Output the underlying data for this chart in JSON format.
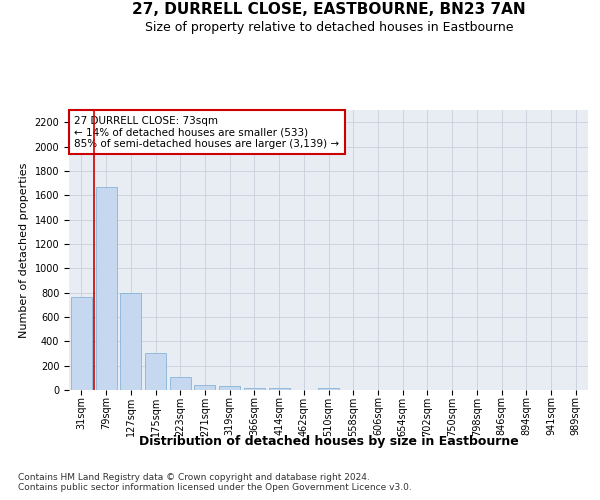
{
  "title1": "27, DURRELL CLOSE, EASTBOURNE, BN23 7AN",
  "title2": "Size of property relative to detached houses in Eastbourne",
  "xlabel": "Distribution of detached houses by size in Eastbourne",
  "ylabel": "Number of detached properties",
  "categories": [
    "31sqm",
    "79sqm",
    "127sqm",
    "175sqm",
    "223sqm",
    "271sqm",
    "319sqm",
    "366sqm",
    "414sqm",
    "462sqm",
    "510sqm",
    "558sqm",
    "606sqm",
    "654sqm",
    "702sqm",
    "750sqm",
    "798sqm",
    "846sqm",
    "894sqm",
    "941sqm",
    "989sqm"
  ],
  "values": [
    760,
    1670,
    800,
    300,
    110,
    40,
    30,
    20,
    20,
    0,
    20,
    0,
    0,
    0,
    0,
    0,
    0,
    0,
    0,
    0,
    0
  ],
  "bar_color": "#c5d8f0",
  "bar_edge_color": "#7aaad0",
  "grid_color": "#c8d0dc",
  "background_color": "#e8edf4",
  "annotation_text": "27 DURRELL CLOSE: 73sqm\n← 14% of detached houses are smaller (533)\n85% of semi-detached houses are larger (3,139) →",
  "annotation_box_color": "#ffffff",
  "annotation_box_edge": "#cc0000",
  "vline_color": "#cc0000",
  "ylim": [
    0,
    2300
  ],
  "yticks": [
    0,
    200,
    400,
    600,
    800,
    1000,
    1200,
    1400,
    1600,
    1800,
    2000,
    2200
  ],
  "footer": "Contains HM Land Registry data © Crown copyright and database right 2024.\nContains public sector information licensed under the Open Government Licence v3.0.",
  "title1_fontsize": 11,
  "title2_fontsize": 9,
  "xlabel_fontsize": 9,
  "ylabel_fontsize": 8,
  "tick_fontsize": 7,
  "footer_fontsize": 6.5,
  "annot_fontsize": 7.5
}
